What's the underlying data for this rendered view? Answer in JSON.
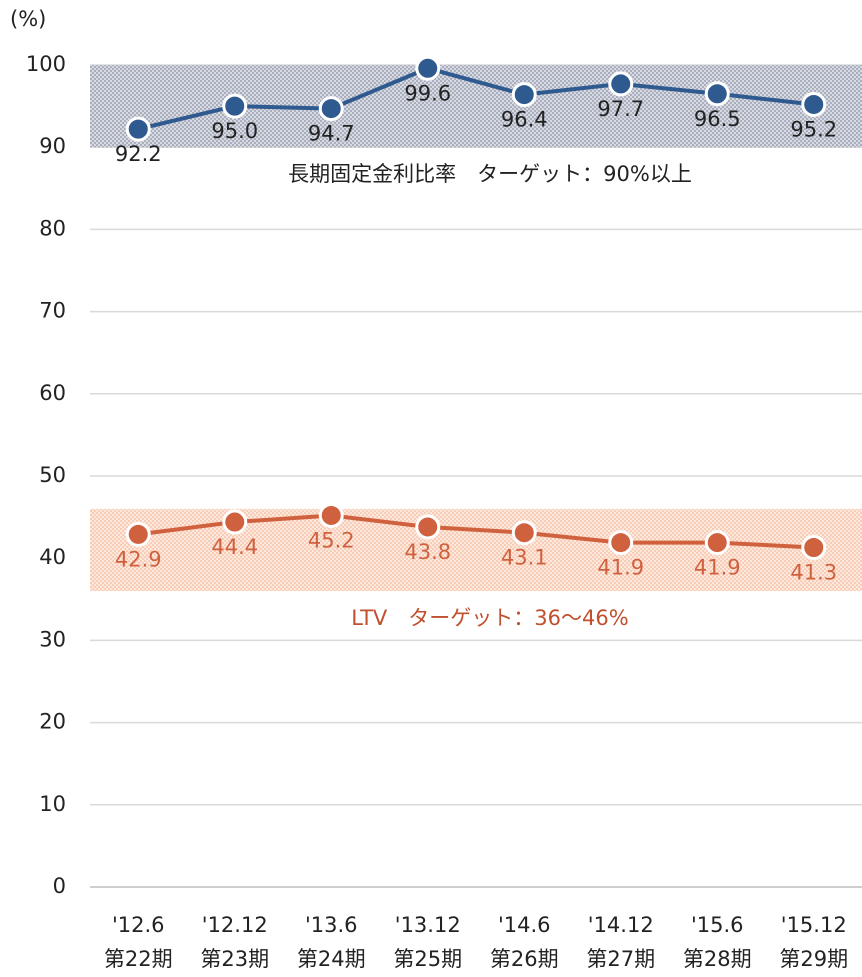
{
  "chart_data": {
    "type": "line",
    "y_label": "(%)",
    "categories": [
      "'12.6",
      "'12.12",
      "'13.6",
      "'13.12",
      "'14.6",
      "'14.12",
      "'15.6",
      "'15.12"
    ],
    "periods": [
      "第22期",
      "第23期",
      "第24期",
      "第25期",
      "第26期",
      "第27期",
      "第28期",
      "第29期"
    ],
    "series": [
      {
        "color": "#2f5a8f",
        "values": [
          92.2,
          95.0,
          94.7,
          99.6,
          96.4,
          97.7,
          96.5,
          95.2
        ],
        "value_labels": [
          "92.2",
          "95.0",
          "94.7",
          "99.6",
          "96.4",
          "97.7",
          "96.5",
          "95.2"
        ]
      },
      {
        "color": "#d0613e",
        "values": [
          42.9,
          44.4,
          45.2,
          43.8,
          43.1,
          41.9,
          41.9,
          41.3
        ],
        "value_labels": [
          "42.9",
          "44.4",
          "45.2",
          "43.8",
          "43.1",
          "41.9",
          "41.9",
          "41.3"
        ]
      }
    ],
    "bands": [
      {
        "range": [
          90,
          100
        ],
        "color": "#b9bfcc",
        "label": "長期固定金利比率　ターゲット：90%以上",
        "label_color": "#222222"
      },
      {
        "range": [
          36,
          46
        ],
        "color": "#fbd9c8",
        "label": "LTV　ターゲット：36～46%",
        "label_color": "#c0502e"
      }
    ],
    "ylim": [
      0,
      100
    ],
    "yticks": [
      0,
      10,
      20,
      30,
      40,
      50,
      60,
      70,
      80,
      90,
      100
    ],
    "grid": true
  }
}
